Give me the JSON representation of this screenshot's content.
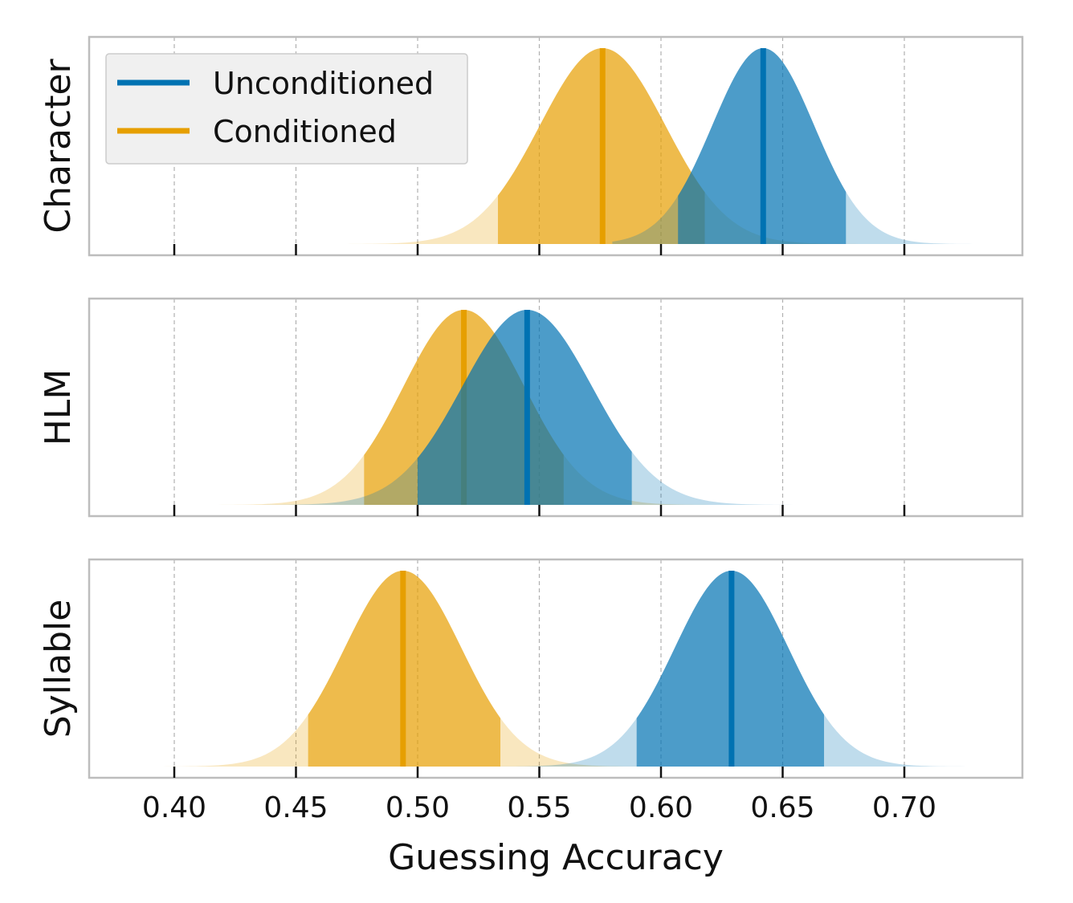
{
  "chart_data": {
    "type": "area",
    "xlabel": "Guessing Accuracy",
    "xlim": [
      0.365,
      0.75
    ],
    "xticks": [
      "0.40",
      "0.45",
      "0.50",
      "0.55",
      "0.60",
      "0.65",
      "0.70"
    ],
    "grid": "vertical dashed",
    "legend": {
      "placement": "top-left",
      "entries": [
        "Unconditioned",
        "Conditioned"
      ]
    },
    "colors": {
      "Unconditioned": "#0072b2",
      "Conditioned": "#e69f00",
      "grid": "#b0b0b0",
      "frame": "#bdbdbd",
      "legend_bg": "#f0f0f0"
    },
    "panels": [
      {
        "ylabel": "Character",
        "series": [
          {
            "name": "Unconditioned",
            "mean": 0.642,
            "interval": [
              0.607,
              0.676
            ],
            "range": [
              0.58,
              0.74
            ]
          },
          {
            "name": "Conditioned",
            "mean": 0.576,
            "interval": [
              0.533,
              0.618
            ],
            "range": [
              0.45,
              0.7
            ]
          }
        ]
      },
      {
        "ylabel": "HLM",
        "series": [
          {
            "name": "Unconditioned",
            "mean": 0.545,
            "interval": [
              0.5,
              0.588
            ],
            "range": [
              0.43,
              0.66
            ]
          },
          {
            "name": "Conditioned",
            "mean": 0.519,
            "interval": [
              0.478,
              0.56
            ],
            "range": [
              0.4,
              0.64
            ]
          }
        ]
      },
      {
        "ylabel": "Syllable",
        "series": [
          {
            "name": "Unconditioned",
            "mean": 0.629,
            "interval": [
              0.59,
              0.667
            ],
            "range": [
              0.52,
              0.74
            ]
          },
          {
            "name": "Conditioned",
            "mean": 0.494,
            "interval": [
              0.455,
              0.534
            ],
            "range": [
              0.38,
              0.61
            ]
          }
        ]
      }
    ]
  }
}
